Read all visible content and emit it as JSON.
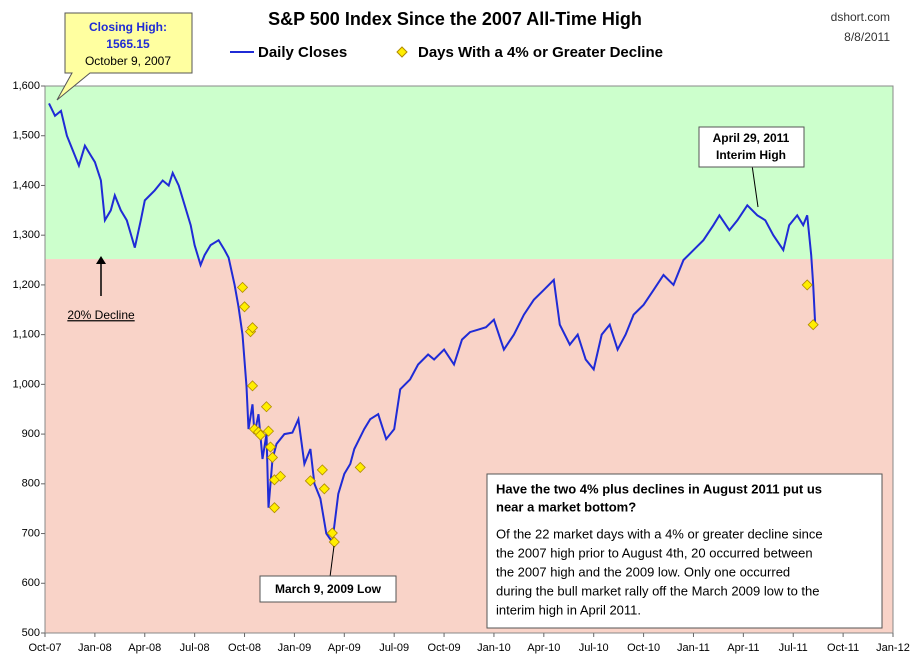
{
  "chart_data": {
    "type": "line",
    "title": "S&P 500 Index Since the 2007 All-Time High",
    "source": "dshort.com",
    "date": "8/8/2011",
    "xlim": [
      2007.75,
      2012.0
    ],
    "xticks": [
      {
        "value": 2007.75,
        "label": "Oct-07"
      },
      {
        "value": 2008.0,
        "label": "Jan-08"
      },
      {
        "value": 2008.25,
        "label": "Apr-08"
      },
      {
        "value": 2008.5,
        "label": "Jul-08"
      },
      {
        "value": 2008.75,
        "label": "Oct-08"
      },
      {
        "value": 2009.0,
        "label": "Jan-09"
      },
      {
        "value": 2009.25,
        "label": "Apr-09"
      },
      {
        "value": 2009.5,
        "label": "Jul-09"
      },
      {
        "value": 2009.75,
        "label": "Oct-09"
      },
      {
        "value": 2010.0,
        "label": "Jan-10"
      },
      {
        "value": 2010.25,
        "label": "Apr-10"
      },
      {
        "value": 2010.5,
        "label": "Jul-10"
      },
      {
        "value": 2010.75,
        "label": "Oct-10"
      },
      {
        "value": 2011.0,
        "label": "Jan-11"
      },
      {
        "value": 2011.25,
        "label": "Apr-11"
      },
      {
        "value": 2011.5,
        "label": "Jul-11"
      },
      {
        "value": 2011.75,
        "label": "Oct-11"
      },
      {
        "value": 2012.0,
        "label": "Jan-12"
      }
    ],
    "ylim": [
      500,
      1600
    ],
    "yticks": [
      500,
      600,
      700,
      800,
      900,
      {
        "value": 1000,
        "label": "1,000"
      },
      {
        "value": 1100,
        "label": "1,100"
      },
      {
        "value": 1200,
        "label": "1,200"
      },
      {
        "value": 1300,
        "label": "1,300"
      },
      {
        "value": 1400,
        "label": "1,400"
      },
      {
        "value": 1500,
        "label": "1,500"
      },
      {
        "value": 1600,
        "label": "1,600"
      }
    ],
    "grid": false,
    "shading": {
      "threshold": 1252,
      "above_color": "#ccffcc",
      "below_color": "#f9d3c8"
    },
    "series": [
      {
        "name": "Daily Closes",
        "color": "#1f2bd6",
        "type": "line",
        "x": [
          2007.77,
          2007.8,
          2007.83,
          2007.86,
          2007.89,
          2007.92,
          2007.95,
          2007.98,
          2008.0,
          2008.03,
          2008.05,
          2008.08,
          2008.1,
          2008.13,
          2008.16,
          2008.2,
          2008.23,
          2008.25,
          2008.3,
          2008.34,
          2008.37,
          2008.39,
          2008.42,
          2008.45,
          2008.48,
          2008.5,
          2008.53,
          2008.55,
          2008.58,
          2008.62,
          2008.65,
          2008.67,
          2008.7,
          2008.72,
          2008.74,
          2008.76,
          2008.77,
          2008.79,
          2008.8,
          2008.82,
          2008.84,
          2008.86,
          2008.87,
          2008.89,
          2008.91,
          2008.95,
          2008.99,
          2009.02,
          2009.05,
          2009.08,
          2009.1,
          2009.13,
          2009.16,
          2009.19,
          2009.22,
          2009.25,
          2009.28,
          2009.3,
          2009.35,
          2009.38,
          2009.42,
          2009.46,
          2009.5,
          2009.53,
          2009.58,
          2009.62,
          2009.67,
          2009.7,
          2009.75,
          2009.8,
          2009.84,
          2009.88,
          2009.92,
          2009.96,
          2010.0,
          2010.05,
          2010.1,
          2010.15,
          2010.2,
          2010.25,
          2010.3,
          2010.33,
          2010.38,
          2010.42,
          2010.46,
          2010.5,
          2010.54,
          2010.58,
          2010.62,
          2010.66,
          2010.7,
          2010.75,
          2010.8,
          2010.85,
          2010.9,
          2010.95,
          2011.0,
          2011.05,
          2011.1,
          2011.13,
          2011.18,
          2011.22,
          2011.27,
          2011.32,
          2011.36,
          2011.4,
          2011.45,
          2011.48,
          2011.52,
          2011.55,
          2011.57,
          2011.59,
          2011.6,
          2011.61
        ],
        "values": [
          1565,
          1540,
          1550,
          1500,
          1470,
          1440,
          1480,
          1460,
          1447,
          1410,
          1330,
          1350,
          1380,
          1350,
          1330,
          1275,
          1330,
          1370,
          1390,
          1410,
          1400,
          1425,
          1400,
          1360,
          1320,
          1280,
          1240,
          1260,
          1280,
          1290,
          1270,
          1255,
          1200,
          1156,
          1100,
          996,
          910,
          960,
          900,
          940,
          850,
          900,
          752,
          850,
          880,
          900,
          903,
          930,
          840,
          870,
          800,
          770,
          700,
          683,
          780,
          820,
          840,
          870,
          910,
          930,
          940,
          890,
          910,
          990,
          1010,
          1040,
          1060,
          1050,
          1070,
          1040,
          1090,
          1105,
          1110,
          1115,
          1130,
          1070,
          1100,
          1140,
          1170,
          1190,
          1210,
          1120,
          1080,
          1100,
          1050,
          1030,
          1100,
          1120,
          1070,
          1100,
          1140,
          1160,
          1190,
          1220,
          1200,
          1250,
          1270,
          1290,
          1320,
          1340,
          1310,
          1330,
          1360,
          1340,
          1330,
          1300,
          1270,
          1320,
          1340,
          1320,
          1340,
          1260,
          1200,
          1120
        ]
      },
      {
        "name": "Days With a 4% or Greater Decline",
        "color": "#ffee00",
        "type": "scatter",
        "x": [
          2008.74,
          2008.75,
          2008.78,
          2008.79,
          2008.79,
          2008.8,
          2008.82,
          2008.83,
          2008.86,
          2008.87,
          2008.88,
          2008.89,
          2008.9,
          2008.93,
          2008.9,
          2009.08,
          2009.14,
          2009.15,
          2009.19,
          2009.2,
          2009.33,
          2011.57,
          2011.6
        ],
        "values": [
          1195,
          1156,
          1106,
          1114,
          997,
          910,
          904,
          898,
          955,
          906,
          874,
          853,
          808,
          815,
          752,
          806,
          828,
          790,
          701,
          683,
          833,
          1200,
          1120
        ]
      }
    ],
    "annotations": {
      "closing_high": [
        "Closing High:",
        "1565.15",
        "October 9, 2007"
      ],
      "decline": "20% Decline",
      "interim_high": [
        "April 29, 2011",
        "Interim High"
      ],
      "low": "March 9, 2009 Low",
      "note_title": [
        "Have the two 4% plus declines in August 2011 put us",
        "near a market bottom?"
      ],
      "note_body": [
        "Of the 22 market days with a 4% or greater decline since",
        "the 2007 high prior to August 4th, 20 occurred between",
        "the 2007 high and the 2009 low. Only one occurred",
        "during the bull market rally off the March 2009 low to the",
        "interim high in April 2011."
      ]
    }
  }
}
